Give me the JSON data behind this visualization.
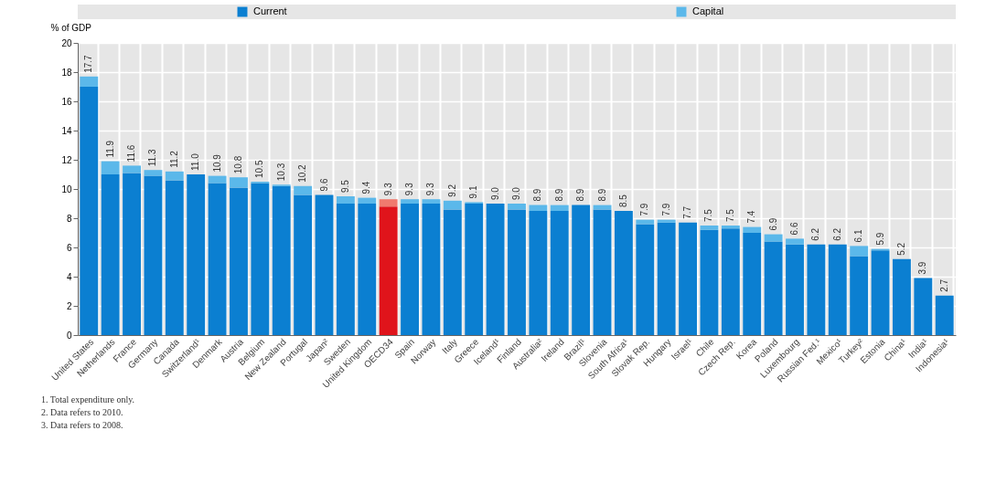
{
  "chart_data": {
    "type": "bar",
    "stacked": true,
    "ylabel": "% of GDP",
    "categories": [
      "United States",
      "Netherlands",
      "France",
      "Germany",
      "Canada",
      "Switzerland¹",
      "Denmark",
      "Austria",
      "Belgium",
      "New Zealand",
      "Portugal",
      "Japan²",
      "Sweden",
      "United Kingdom",
      "OECD34",
      "Spain",
      "Norway",
      "Italy",
      "Greece",
      "Iceland¹",
      "Finland",
      "Australia²",
      "Ireland",
      "Brazil¹",
      "Slovenia",
      "South Africa¹",
      "Slovak Rep.",
      "Hungary",
      "Israel¹",
      "Chile",
      "Czech Rep.",
      "Korea",
      "Poland",
      "Luxembourg",
      "Russian Fed.¹",
      "Mexico¹",
      "Turkey²",
      "Estonia",
      "China¹",
      "India¹",
      "Indonesia¹"
    ],
    "series": [
      {
        "name": "Current",
        "color": "#0b7fd1",
        "values": [
          17.0,
          11.0,
          11.1,
          10.9,
          10.6,
          11.0,
          10.4,
          10.1,
          10.4,
          10.2,
          9.6,
          9.6,
          9.0,
          9.0,
          8.8,
          9.0,
          9.0,
          8.6,
          9.0,
          9.0,
          8.6,
          8.5,
          8.5,
          8.9,
          8.6,
          8.5,
          7.6,
          7.7,
          7.7,
          7.2,
          7.3,
          7.0,
          6.4,
          6.2,
          6.2,
          6.2,
          5.4,
          5.8,
          5.2,
          3.9,
          2.7
        ],
        "colors": [
          "#0b7fd1",
          "#0b7fd1",
          "#0b7fd1",
          "#0b7fd1",
          "#0b7fd1",
          "#0b7fd1",
          "#0b7fd1",
          "#0b7fd1",
          "#0b7fd1",
          "#0b7fd1",
          "#0b7fd1",
          "#0b7fd1",
          "#0b7fd1",
          "#0b7fd1",
          "#e0141b",
          "#0b7fd1",
          "#0b7fd1",
          "#0b7fd1",
          "#0b7fd1",
          "#0b7fd1",
          "#0b7fd1",
          "#0b7fd1",
          "#0b7fd1",
          "#0b7fd1",
          "#0b7fd1",
          "#0b7fd1",
          "#0b7fd1",
          "#0b7fd1",
          "#0b7fd1",
          "#0b7fd1",
          "#0b7fd1",
          "#0b7fd1",
          "#0b7fd1",
          "#0b7fd1",
          "#0b7fd1",
          "#0b7fd1",
          "#0b7fd1",
          "#0b7fd1",
          "#0b7fd1",
          "#0b7fd1",
          "#0b7fd1"
        ]
      },
      {
        "name": "Capital",
        "color": "#5bb8ea",
        "values": [
          0.7,
          0.9,
          0.5,
          0.4,
          0.6,
          null,
          0.5,
          0.7,
          0.1,
          0.1,
          0.6,
          null,
          0.5,
          0.4,
          0.5,
          0.3,
          0.3,
          0.6,
          0.1,
          null,
          0.4,
          0.4,
          0.4,
          null,
          0.3,
          null,
          0.3,
          0.2,
          null,
          0.3,
          0.2,
          0.4,
          0.5,
          0.4,
          null,
          null,
          0.7,
          0.1,
          null,
          null,
          null
        ],
        "colors": [
          "#5bb8ea",
          "#5bb8ea",
          "#5bb8ea",
          "#5bb8ea",
          "#5bb8ea",
          "#5bb8ea",
          "#5bb8ea",
          "#5bb8ea",
          "#5bb8ea",
          "#5bb8ea",
          "#5bb8ea",
          "#5bb8ea",
          "#5bb8ea",
          "#5bb8ea",
          "#f07a6e",
          "#5bb8ea",
          "#5bb8ea",
          "#5bb8ea",
          "#5bb8ea",
          "#5bb8ea",
          "#5bb8ea",
          "#5bb8ea",
          "#5bb8ea",
          "#5bb8ea",
          "#5bb8ea",
          "#5bb8ea",
          "#5bb8ea",
          "#5bb8ea",
          "#5bb8ea",
          "#5bb8ea",
          "#5bb8ea",
          "#5bb8ea",
          "#5bb8ea",
          "#5bb8ea",
          "#5bb8ea",
          "#5bb8ea",
          "#5bb8ea",
          "#5bb8ea",
          "#5bb8ea",
          "#5bb8ea",
          "#5bb8ea"
        ]
      }
    ],
    "totals": [
      "17.7",
      "11.9",
      "11.6",
      "11.3",
      "11.2",
      "11.0",
      "10.9",
      "10.8",
      "10.5",
      "10.3",
      "10.2",
      "9.6",
      "9.5",
      "9.4",
      "9.3",
      "9.3",
      "9.3",
      "9.2",
      "9.1",
      "9.0",
      "9.0",
      "8.9",
      "8.9",
      "8.9",
      "8.9",
      "8.5",
      "7.9",
      "7.9",
      "7.7",
      "7.5",
      "7.5",
      "7.4",
      "6.9",
      "6.6",
      "6.2",
      "6.2",
      "6.1",
      "5.9",
      "5.2",
      "3.9",
      "2.7"
    ],
    "ylim": [
      0,
      20
    ],
    "yticks": [
      0,
      2,
      4,
      6,
      8,
      10,
      12,
      14,
      16,
      18,
      20
    ],
    "grid": true,
    "legend": "top",
    "annotations": [
      "1. Total expenditure only.",
      "2. Data refers to 2010.",
      "3. Data refers to 2008."
    ]
  }
}
